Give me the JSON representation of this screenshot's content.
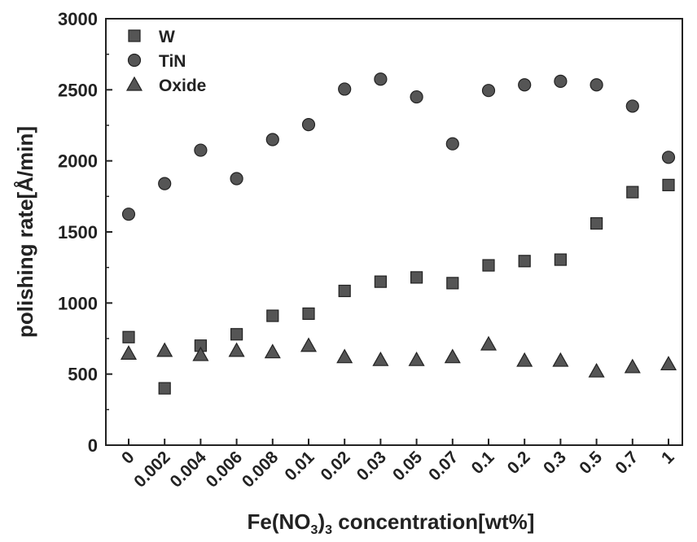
{
  "chart_data": {
    "type": "scatter",
    "categories": [
      "0",
      "0.002",
      "0.004",
      "0.006",
      "0.008",
      "0.01",
      "0.02",
      "0.03",
      "0.05",
      "0.07",
      "0.1",
      "0.2",
      "0.3",
      "0.5",
      "0.7",
      "1"
    ],
    "xlabel_parts": [
      "Fe(NO",
      "3",
      ")",
      "3",
      " concentration[wt%]"
    ],
    "ylabel": "polishing rate[Å/min]",
    "ylim": [
      0,
      3000
    ],
    "yticks": [
      "0",
      "500",
      "1000",
      "1500",
      "2000",
      "2500",
      "3000"
    ],
    "legend_position": "top-left",
    "series": [
      {
        "name": "W",
        "marker": "square",
        "values": [
          760,
          400,
          700,
          780,
          910,
          925,
          1085,
          1150,
          1180,
          1140,
          1265,
          1295,
          1305,
          1560,
          1780,
          1830
        ]
      },
      {
        "name": "TiN",
        "marker": "circle",
        "values": [
          1625,
          1840,
          2075,
          1875,
          2150,
          2255,
          2505,
          2575,
          2450,
          2120,
          2495,
          2535,
          2560,
          2535,
          2385,
          2025
        ]
      },
      {
        "name": "Oxide",
        "marker": "triangle",
        "values": [
          645,
          665,
          635,
          665,
          655,
          700,
          620,
          600,
          600,
          620,
          710,
          595,
          595,
          520,
          550,
          570
        ]
      }
    ]
  }
}
